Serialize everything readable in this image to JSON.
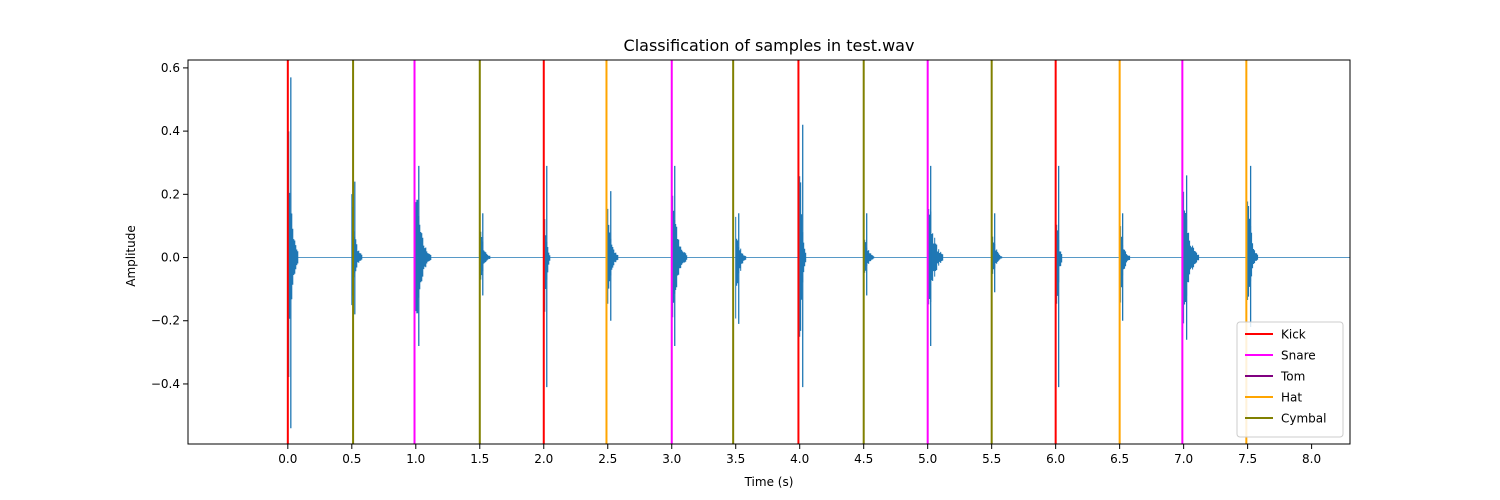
{
  "chart_data": {
    "type": "line",
    "title": "Classification of samples in test.wav",
    "xlabel": "Time (s)",
    "ylabel": "Amplitude",
    "xlim": [
      -0.78,
      8.3
    ],
    "ylim": [
      -0.59,
      0.625
    ],
    "xticks": [
      0.0,
      0.5,
      1.0,
      1.5,
      2.0,
      2.5,
      3.0,
      3.5,
      4.0,
      4.5,
      5.0,
      5.5,
      6.0,
      6.5,
      7.0,
      7.5,
      8.0
    ],
    "xtick_labels": [
      "0.0",
      "0.5",
      "1.0",
      "1.5",
      "2.0",
      "2.5",
      "3.0",
      "3.5",
      "4.0",
      "4.5",
      "5.0",
      "5.5",
      "6.0",
      "6.5",
      "7.0",
      "7.5",
      "8.0"
    ],
    "yticks": [
      -0.4,
      -0.2,
      0.0,
      0.2,
      0.4,
      0.6
    ],
    "ytick_labels": [
      "−0.4",
      "−0.2",
      "0.0",
      "0.2",
      "0.4",
      "0.6"
    ],
    "legend": {
      "placement": "bottom-right",
      "entries": [
        {
          "label": "Kick",
          "color": "#ff0000"
        },
        {
          "label": "Snare",
          "color": "#ff00ff"
        },
        {
          "label": "Tom",
          "color": "#800080"
        },
        {
          "label": "Hat",
          "color": "#ffa500"
        },
        {
          "label": "Cymbal",
          "color": "#808000"
        }
      ]
    },
    "waveform": {
      "color": "#1f77b4",
      "hits": [
        {
          "t": 0.0,
          "type": "kick",
          "max": 0.57,
          "min": -0.54,
          "decay": 0.08
        },
        {
          "t": 0.5,
          "type": "cymbal",
          "max": 0.24,
          "min": -0.18,
          "decay": 0.08
        },
        {
          "t": 1.0,
          "type": "snare",
          "max": 0.29,
          "min": -0.28,
          "decay": 0.12
        },
        {
          "t": 1.5,
          "type": "cymbal",
          "max": 0.14,
          "min": -0.12,
          "decay": 0.08
        },
        {
          "t": 2.0,
          "type": "kick",
          "max": 0.29,
          "min": -0.41,
          "decay": 0.05
        },
        {
          "t": 2.5,
          "type": "hat",
          "max": 0.21,
          "min": -0.2,
          "decay": 0.08
        },
        {
          "t": 3.0,
          "type": "snare",
          "max": 0.29,
          "min": -0.28,
          "decay": 0.12
        },
        {
          "t": 3.5,
          "type": "cymbal",
          "max": 0.14,
          "min": -0.21,
          "decay": 0.08
        },
        {
          "t": 4.0,
          "type": "kick",
          "max": 0.42,
          "min": -0.41,
          "decay": 0.05
        },
        {
          "t": 4.5,
          "type": "cymbal",
          "max": 0.14,
          "min": -0.12,
          "decay": 0.08
        },
        {
          "t": 5.0,
          "type": "snare",
          "max": 0.29,
          "min": -0.28,
          "decay": 0.12
        },
        {
          "t": 5.5,
          "type": "cymbal",
          "max": 0.14,
          "min": -0.11,
          "decay": 0.08
        },
        {
          "t": 6.0,
          "type": "kick",
          "max": 0.29,
          "min": -0.41,
          "decay": 0.05
        },
        {
          "t": 6.5,
          "type": "hat",
          "max": 0.14,
          "min": -0.2,
          "decay": 0.08
        },
        {
          "t": 7.0,
          "type": "snare",
          "max": 0.26,
          "min": -0.26,
          "decay": 0.12
        },
        {
          "t": 7.5,
          "type": "hat",
          "max": 0.29,
          "min": -0.22,
          "decay": 0.08
        }
      ]
    },
    "onsets": [
      {
        "t": 0.0,
        "label": "Kick",
        "color": "#ff0000"
      },
      {
        "t": 0.51,
        "label": "Cymbal",
        "color": "#808000"
      },
      {
        "t": 0.99,
        "label": "Snare",
        "color": "#ff00ff"
      },
      {
        "t": 1.5,
        "label": "Cymbal",
        "color": "#808000"
      },
      {
        "t": 2.0,
        "label": "Kick",
        "color": "#ff0000"
      },
      {
        "t": 2.49,
        "label": "Hat",
        "color": "#ffa500"
      },
      {
        "t": 3.0,
        "label": "Snare",
        "color": "#ff00ff"
      },
      {
        "t": 3.48,
        "label": "Cymbal",
        "color": "#808000"
      },
      {
        "t": 3.99,
        "label": "Kick",
        "color": "#ff0000"
      },
      {
        "t": 4.5,
        "label": "Cymbal",
        "color": "#808000"
      },
      {
        "t": 5.0,
        "label": "Snare",
        "color": "#ff00ff"
      },
      {
        "t": 5.5,
        "label": "Cymbal",
        "color": "#808000"
      },
      {
        "t": 6.0,
        "label": "Kick",
        "color": "#ff0000"
      },
      {
        "t": 6.5,
        "label": "Hat",
        "color": "#ffa500"
      },
      {
        "t": 6.99,
        "label": "Snare",
        "color": "#ff00ff"
      },
      {
        "t": 7.49,
        "label": "Hat",
        "color": "#ffa500"
      }
    ]
  }
}
